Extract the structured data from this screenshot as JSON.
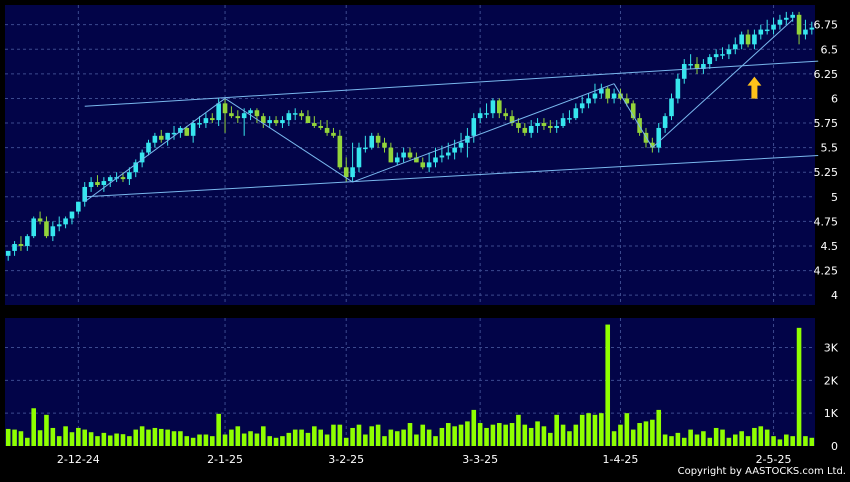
{
  "colors": {
    "background": "#000000",
    "plot_background": "#020448",
    "grid": "#3c4a8e",
    "up_candle": "#37e6ee",
    "down_candle": "#93d43a",
    "volume_bar": "#8fff00",
    "trendline": "#7ab8ee",
    "arrow": "#ffc21a",
    "text": "#ffffff"
  },
  "copyright": "Copyright by AASTOCKS.com Ltd.",
  "chart_data": [
    {
      "type": "candlestick",
      "title": "",
      "ylim": [
        3.9,
        6.95
      ],
      "y_ticks": [
        4,
        4.25,
        4.5,
        4.75,
        5,
        5.25,
        5.5,
        5.75,
        6,
        6.25,
        6.5,
        6.75
      ],
      "y_tick_labels": [
        "4",
        "4.25",
        "4.5",
        "4.75",
        "5",
        "5.25",
        "5.5",
        "5.75",
        "6",
        "6.25",
        "6.5",
        "6.75"
      ],
      "x_ticks": [
        11,
        34,
        53,
        74,
        96,
        120
      ],
      "x_tick_labels": [
        "2-12-24",
        "2-1-25",
        "3-2-25",
        "3-3-25",
        "1-4-25",
        "2-5-25"
      ],
      "grid": true,
      "num_sessions": 127,
      "open": [
        4.4,
        4.45,
        4.52,
        4.5,
        4.6,
        4.78,
        4.75,
        4.6,
        4.7,
        4.72,
        4.78,
        4.85,
        4.95,
        5.1,
        5.15,
        5.12,
        5.16,
        5.2,
        5.2,
        5.18,
        5.25,
        5.35,
        5.45,
        5.55,
        5.62,
        5.58,
        5.65,
        5.65,
        5.7,
        5.62,
        5.75,
        5.75,
        5.8,
        5.78,
        5.95,
        5.85,
        5.82,
        5.8,
        5.85,
        5.88,
        5.82,
        5.75,
        5.78,
        5.75,
        5.78,
        5.85,
        5.85,
        5.82,
        5.75,
        5.72,
        5.7,
        5.65,
        5.62,
        5.3,
        5.2,
        5.3,
        5.5,
        5.5,
        5.62,
        5.55,
        5.5,
        5.35,
        5.4,
        5.45,
        5.4,
        5.35,
        5.3,
        5.35,
        5.4,
        5.42,
        5.45,
        5.5,
        5.55,
        5.62,
        5.8,
        5.85,
        5.85,
        5.98,
        5.85,
        5.82,
        5.75,
        5.7,
        5.65,
        5.72,
        5.75,
        5.72,
        5.7,
        5.72,
        5.8,
        5.8,
        5.9,
        5.95,
        6.0,
        6.05,
        6.1,
        6.0,
        6.05,
        6.0,
        5.95,
        5.8,
        5.65,
        5.55,
        5.5,
        5.7,
        5.82,
        6.0,
        6.2,
        6.35,
        6.35,
        6.3,
        6.35,
        6.42,
        6.45,
        6.45,
        6.5,
        6.55,
        6.65,
        6.55,
        6.65,
        6.7,
        6.7,
        6.75,
        6.8,
        6.82,
        6.85,
        6.65,
        6.7
      ],
      "high": [
        4.45,
        4.55,
        4.6,
        4.62,
        4.8,
        4.85,
        4.8,
        4.75,
        4.8,
        4.8,
        4.85,
        4.95,
        5.15,
        5.2,
        5.22,
        5.2,
        5.22,
        5.25,
        5.25,
        5.3,
        5.38,
        5.48,
        5.58,
        5.65,
        5.68,
        5.65,
        5.72,
        5.72,
        5.72,
        5.78,
        5.82,
        5.85,
        5.85,
        6.0,
        6.0,
        5.92,
        5.88,
        5.9,
        5.9,
        5.9,
        5.85,
        5.82,
        5.82,
        5.82,
        5.88,
        5.9,
        5.88,
        5.88,
        5.82,
        5.78,
        5.78,
        5.7,
        5.68,
        5.4,
        5.55,
        5.55,
        5.62,
        5.65,
        5.65,
        5.6,
        5.55,
        5.45,
        5.5,
        5.5,
        5.45,
        5.4,
        5.45,
        5.5,
        5.52,
        5.55,
        5.58,
        5.65,
        5.7,
        5.85,
        5.9,
        5.95,
        6.0,
        6.0,
        5.9,
        5.88,
        5.8,
        5.75,
        5.78,
        5.8,
        5.8,
        5.78,
        5.78,
        5.85,
        5.88,
        5.95,
        6.02,
        6.05,
        6.15,
        6.15,
        6.12,
        6.1,
        6.1,
        6.05,
        5.98,
        5.85,
        5.7,
        5.6,
        5.75,
        5.85,
        6.05,
        6.25,
        6.4,
        6.45,
        6.42,
        6.4,
        6.45,
        6.5,
        6.52,
        6.55,
        6.62,
        6.68,
        6.7,
        6.7,
        6.75,
        6.8,
        6.82,
        6.85,
        6.88,
        6.88,
        6.88,
        6.8,
        6.78
      ],
      "low": [
        4.35,
        4.4,
        4.45,
        4.45,
        4.58,
        4.72,
        4.58,
        4.55,
        4.65,
        4.68,
        4.72,
        4.82,
        4.9,
        5.05,
        5.1,
        5.05,
        5.1,
        5.15,
        5.15,
        5.12,
        5.2,
        5.3,
        5.42,
        5.5,
        5.55,
        5.52,
        5.58,
        5.6,
        5.62,
        5.55,
        5.7,
        5.7,
        5.75,
        5.72,
        5.65,
        5.8,
        5.75,
        5.62,
        5.78,
        5.75,
        5.7,
        5.7,
        5.72,
        5.7,
        5.72,
        5.78,
        5.78,
        5.75,
        5.7,
        5.68,
        5.62,
        5.6,
        5.28,
        5.15,
        5.15,
        5.25,
        5.45,
        5.48,
        5.5,
        5.45,
        5.35,
        5.32,
        5.35,
        5.38,
        5.35,
        5.28,
        5.25,
        5.3,
        5.35,
        5.38,
        5.38,
        5.45,
        5.4,
        5.55,
        5.75,
        5.8,
        5.8,
        5.8,
        5.78,
        5.72,
        5.65,
        5.62,
        5.6,
        5.65,
        5.68,
        5.65,
        5.65,
        5.7,
        5.75,
        5.78,
        5.85,
        5.9,
        5.95,
        6.0,
        5.95,
        5.95,
        5.98,
        5.92,
        5.78,
        5.62,
        5.5,
        5.45,
        5.45,
        5.65,
        5.78,
        5.95,
        6.15,
        6.3,
        6.25,
        6.25,
        6.3,
        6.38,
        6.4,
        6.4,
        6.45,
        6.5,
        6.52,
        6.5,
        6.6,
        6.65,
        6.65,
        6.7,
        6.75,
        6.78,
        6.55,
        6.6,
        6.65
      ],
      "close": [
        4.45,
        4.52,
        4.5,
        4.6,
        4.78,
        4.75,
        4.6,
        4.7,
        4.72,
        4.78,
        4.85,
        4.95,
        5.1,
        5.15,
        5.12,
        5.16,
        5.2,
        5.2,
        5.18,
        5.25,
        5.35,
        5.45,
        5.55,
        5.62,
        5.58,
        5.65,
        5.65,
        5.7,
        5.62,
        5.75,
        5.75,
        5.8,
        5.78,
        5.95,
        5.85,
        5.82,
        5.8,
        5.85,
        5.88,
        5.82,
        5.75,
        5.78,
        5.75,
        5.78,
        5.85,
        5.85,
        5.82,
        5.75,
        5.72,
        5.7,
        5.65,
        5.62,
        5.3,
        5.2,
        5.3,
        5.5,
        5.5,
        5.62,
        5.55,
        5.5,
        5.35,
        5.4,
        5.45,
        5.4,
        5.35,
        5.3,
        5.35,
        5.4,
        5.42,
        5.45,
        5.5,
        5.55,
        5.62,
        5.8,
        5.85,
        5.85,
        5.98,
        5.85,
        5.82,
        5.75,
        5.7,
        5.65,
        5.72,
        5.75,
        5.72,
        5.7,
        5.72,
        5.8,
        5.8,
        5.9,
        5.95,
        6.0,
        6.05,
        6.1,
        6.0,
        6.05,
        6.0,
        5.95,
        5.8,
        5.65,
        5.55,
        5.5,
        5.7,
        5.82,
        6.0,
        6.2,
        6.35,
        6.35,
        6.3,
        6.35,
        6.42,
        6.45,
        6.45,
        6.5,
        6.55,
        6.65,
        6.55,
        6.65,
        6.7,
        6.7,
        6.75,
        6.8,
        6.82,
        6.85,
        6.65,
        6.7,
        6.72
      ],
      "annotations": [
        {
          "type": "channel-line",
          "from": [
            12,
            5.0
          ],
          "to": [
            127,
            5.42
          ]
        },
        {
          "type": "channel-line",
          "from": [
            12,
            5.92
          ],
          "to": [
            127,
            6.38
          ]
        },
        {
          "type": "trend-line",
          "from": [
            12,
            4.95
          ],
          "to": [
            34,
            6.0
          ]
        },
        {
          "type": "trend-line",
          "from": [
            34,
            6.0
          ],
          "to": [
            54,
            5.15
          ]
        },
        {
          "type": "trend-line",
          "from": [
            54,
            5.15
          ],
          "to": [
            95,
            6.15
          ]
        },
        {
          "type": "trend-line",
          "from": [
            95,
            6.15
          ],
          "to": [
            101,
            5.5
          ]
        },
        {
          "type": "trend-line",
          "from": [
            101,
            5.5
          ],
          "to": [
            123,
            6.8
          ]
        },
        {
          "type": "arrow-up",
          "at": [
            117,
            6.1
          ]
        }
      ]
    },
    {
      "type": "bar",
      "title": "",
      "ylim": [
        0,
        3900
      ],
      "y_ticks": [
        0,
        1000,
        2000,
        3000
      ],
      "y_tick_labels": [
        "0",
        "1K",
        "2K",
        "3K"
      ],
      "x_ticks": [
        11,
        34,
        53,
        74,
        96,
        120
      ],
      "x_tick_labels": [
        "2-12-24",
        "2-1-25",
        "3-2-25",
        "3-3-25",
        "1-4-25",
        "2-5-25"
      ],
      "grid": true,
      "values": [
        520,
        500,
        450,
        250,
        1150,
        480,
        950,
        550,
        300,
        600,
        420,
        550,
        500,
        420,
        300,
        400,
        320,
        380,
        360,
        300,
        500,
        600,
        500,
        550,
        520,
        500,
        450,
        450,
        300,
        250,
        350,
        350,
        300,
        980,
        350,
        500,
        600,
        380,
        450,
        380,
        600,
        300,
        250,
        300,
        400,
        500,
        500,
        400,
        600,
        500,
        350,
        650,
        650,
        250,
        550,
        650,
        350,
        600,
        650,
        300,
        500,
        450,
        500,
        700,
        350,
        650,
        500,
        300,
        550,
        700,
        600,
        650,
        750,
        1100,
        700,
        550,
        650,
        700,
        650,
        700,
        950,
        650,
        550,
        750,
        600,
        400,
        950,
        650,
        450,
        650,
        950,
        1000,
        950,
        1000,
        3700,
        450,
        650,
        1000,
        500,
        700,
        750,
        800,
        1100,
        350,
        300,
        400,
        250,
        500,
        350,
        450,
        250,
        550,
        500,
        250,
        350,
        450,
        300,
        550,
        600,
        500,
        300,
        200,
        350,
        300,
        3600,
        300,
        250
      ]
    }
  ]
}
